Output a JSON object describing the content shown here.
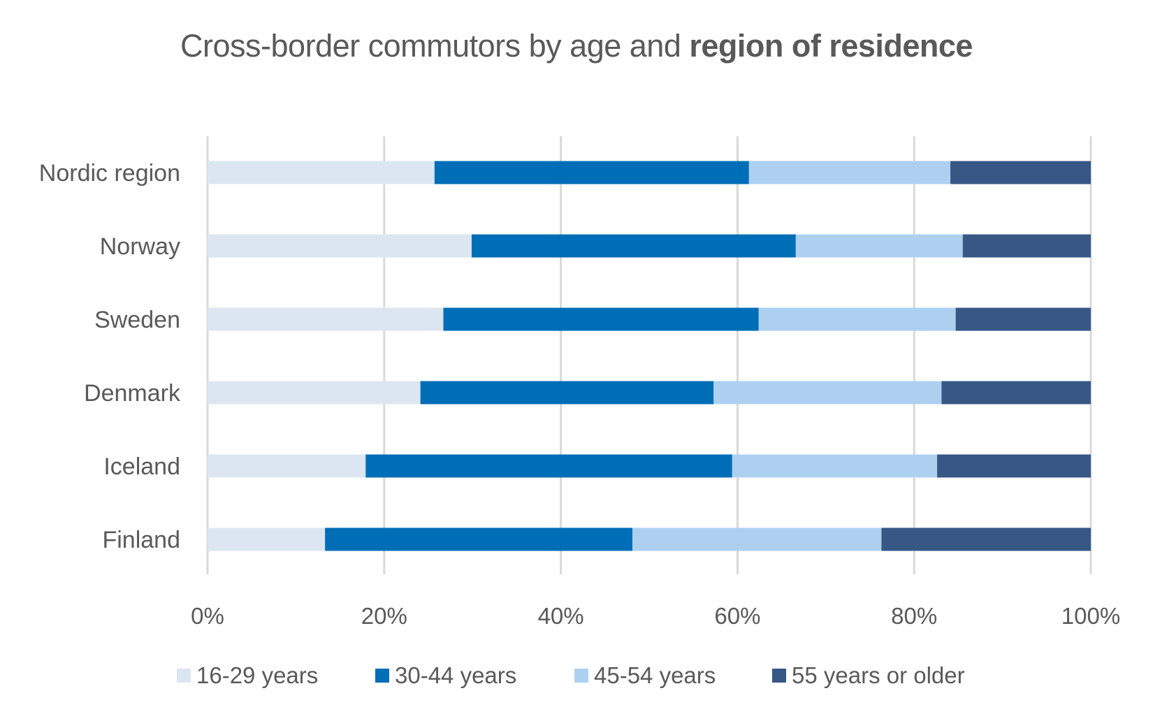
{
  "chart_data": {
    "type": "bar",
    "orientation": "horizontal",
    "stacked": "percent",
    "title": {
      "regular": "Cross-border commutors by age and ",
      "bold": "region of residence"
    },
    "xlabel": "",
    "ylabel": "",
    "xlim": [
      0,
      100
    ],
    "x_ticks": [
      "0%",
      "20%",
      "40%",
      "60%",
      "80%",
      "100%"
    ],
    "x_tick_values": [
      0,
      20,
      40,
      60,
      80,
      100
    ],
    "grid": "vertical",
    "legend_position": "bottom",
    "categories": [
      "Nordic region",
      "Norway",
      "Sweden",
      "Denmark",
      "Iceland",
      "Finland"
    ],
    "series": [
      {
        "name": "16-29 years",
        "color": "#dce6f2",
        "values": [
          25.7,
          29.9,
          26.7,
          24.1,
          17.9,
          13.3
        ]
      },
      {
        "name": "30-44 years",
        "color": "#006eb6",
        "values": [
          35.6,
          36.7,
          35.7,
          33.2,
          41.5,
          34.8
        ]
      },
      {
        "name": "45-54 years",
        "color": "#add0f1",
        "values": [
          22.8,
          18.9,
          22.3,
          25.8,
          23.2,
          28.2
        ]
      },
      {
        "name": "55 years or older",
        "color": "#375785",
        "values": [
          15.9,
          14.5,
          15.3,
          16.9,
          17.4,
          23.7
        ]
      }
    ],
    "units": "percent"
  },
  "colors": {
    "text": "#595959",
    "gridline": "#d9d9d9",
    "background": "#ffffff"
  }
}
